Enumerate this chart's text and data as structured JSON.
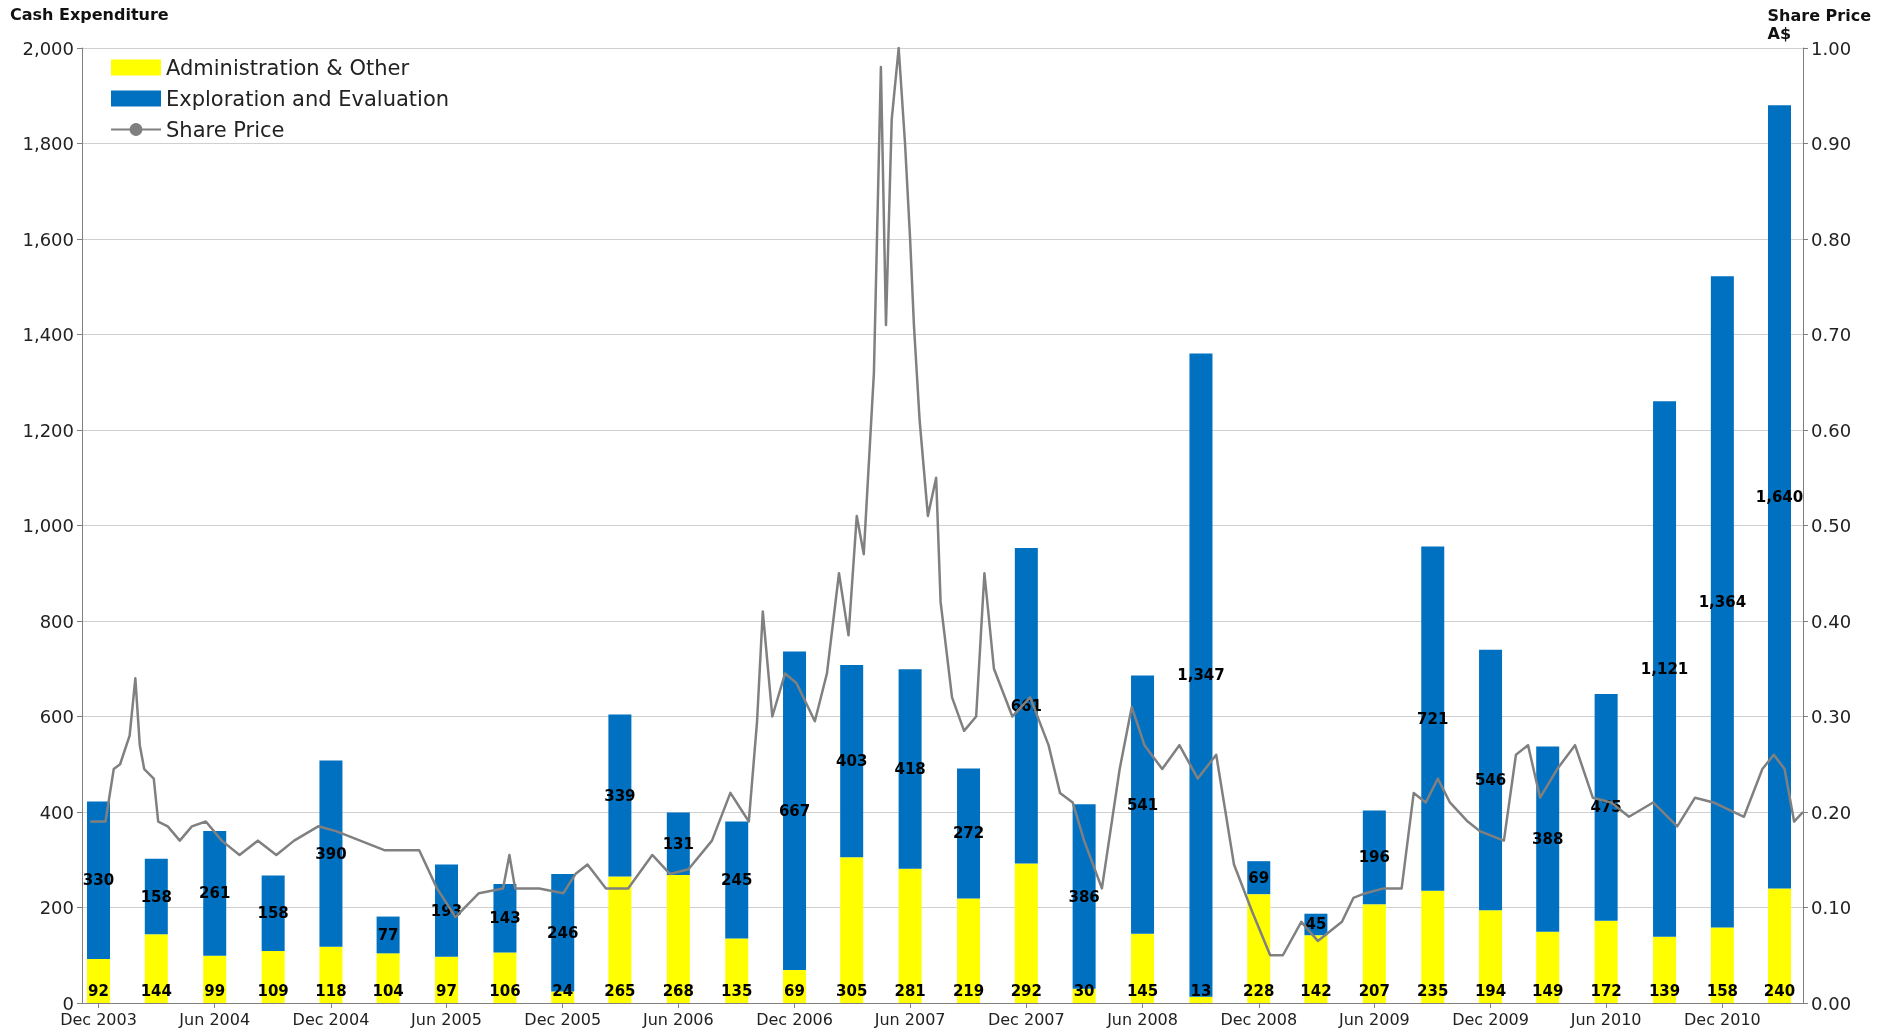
{
  "chart_data": {
    "type": "bar",
    "stacked": true,
    "ylabel": "Cash Expenditure",
    "y2label": "Share Price\nA$",
    "x": [
      "2003-12",
      "2004-03",
      "2004-06",
      "2004-09",
      "2004-12",
      "2005-03",
      "2005-06",
      "2005-09",
      "2005-12",
      "2006-03",
      "2006-06",
      "2006-09",
      "2006-12",
      "2007-03",
      "2007-06",
      "2007-09",
      "2007-12",
      "2008-03",
      "2008-06",
      "2008-09",
      "2008-12",
      "2009-03",
      "2009-06",
      "2009-09",
      "2009-12",
      "2010-03",
      "2010-06",
      "2010-09",
      "2010-12",
      "2011-03"
    ],
    "series": [
      {
        "name": "Administration & Other",
        "color": "#ffff00",
        "values": [
          92,
          144,
          99,
          109,
          118,
          104,
          97,
          106,
          24,
          265,
          268,
          135,
          69,
          305,
          281,
          219,
          292,
          30,
          145,
          13,
          228,
          142,
          207,
          235,
          194,
          149,
          172,
          139,
          158,
          240
        ],
        "value_labels": [
          "92",
          "144",
          "99",
          "109",
          "118",
          "104",
          "97",
          "106",
          "24",
          "265",
          "268",
          "135",
          "69",
          "305",
          "281",
          "219",
          "292",
          "30",
          "145",
          "13",
          "228",
          "142",
          "207",
          "235",
          "194",
          "149",
          "172",
          "139",
          "158",
          "240"
        ]
      },
      {
        "name": "Exploration and Evaluation",
        "color": "#0070c0",
        "values": [
          330,
          158,
          261,
          158,
          390,
          77,
          193,
          143,
          246,
          339,
          131,
          245,
          667,
          403,
          418,
          272,
          661,
          386,
          541,
          1347,
          69,
          45,
          196,
          721,
          546,
          388,
          475,
          1121,
          1364,
          1640
        ],
        "value_labels": [
          "330",
          "158",
          "261",
          "158",
          "390",
          "77",
          "193",
          "143",
          "246",
          "339",
          "131",
          "245",
          "667",
          "403",
          "418",
          "272",
          "661",
          "386",
          "541",
          "1,347",
          "69",
          "45",
          "196",
          "721",
          "546",
          "388",
          "475",
          "1,121",
          "1,364",
          "1,640"
        ]
      },
      {
        "name": "Share Price",
        "type": "line",
        "axis": "y2",
        "color": "#808080",
        "marker": "none",
        "line_style": "solid",
        "x": [
          "2003-11-18",
          "2003-12-12",
          "2003-12-25",
          "2004-01-04",
          "2004-01-19",
          "2004-01-28",
          "2004-02-04",
          "2004-02-11",
          "2004-02-26",
          "2004-03-04",
          "2004-03-19",
          "2004-04-07",
          "2004-04-26",
          "2004-05-18",
          "2004-06-12",
          "2004-07-10",
          "2004-08-08",
          "2004-09-06",
          "2004-10-04",
          "2004-11-11",
          "2004-12-09",
          "2005-01-16",
          "2005-02-23",
          "2005-04-19",
          "2005-05-17",
          "2005-06-15",
          "2005-07-22",
          "2005-08-29",
          "2005-09-08",
          "2005-09-17",
          "2005-10-25",
          "2005-12-02",
          "2005-12-21",
          "2006-01-09",
          "2006-02-07",
          "2006-03-14",
          "2006-04-21",
          "2006-05-19",
          "2006-06-17",
          "2006-07-24",
          "2006-08-22",
          "2006-09-20",
          "2006-10-03",
          "2006-10-12",
          "2006-10-27",
          "2006-11-16",
          "2006-12-04",
          "2007-01-02",
          "2007-01-21",
          "2007-02-09",
          "2007-02-24",
          "2007-03-09",
          "2007-03-20",
          "2007-04-05",
          "2007-04-16",
          "2007-04-24",
          "2007-05-03",
          "2007-05-14",
          "2007-05-24",
          "2007-06-01",
          "2007-06-07",
          "2007-06-16",
          "2007-06-29",
          "2007-07-12",
          "2007-07-19",
          "2007-08-06",
          "2007-08-25",
          "2007-09-13",
          "2007-09-26",
          "2007-10-11",
          "2007-11-09",
          "2007-12-07",
          "2008-01-05",
          "2008-01-23",
          "2008-02-12",
          "2008-03-01",
          "2008-03-29",
          "2008-04-26",
          "2008-05-15",
          "2008-06-04",
          "2008-07-02",
          "2008-07-29",
          "2008-08-27",
          "2008-09-25",
          "2008-10-23",
          "2008-11-21",
          "2008-12-19",
          "2009-01-08",
          "2009-02-06",
          "2009-03-04",
          "2009-04-11",
          "2009-04-29",
          "2009-05-18",
          "2009-06-16",
          "2009-07-14",
          "2009-08-02",
          "2009-08-21",
          "2009-09-09",
          "2009-09-28",
          "2009-10-26",
          "2009-11-14",
          "2009-12-22",
          "2010-01-10",
          "2010-01-29",
          "2010-02-17",
          "2010-03-16",
          "2010-04-13",
          "2010-05-11",
          "2010-06-09",
          "2010-07-07",
          "2010-08-14",
          "2010-09-21",
          "2010-10-19",
          "2010-11-17",
          "2011-01-04",
          "2011-02-02",
          "2011-02-20",
          "2011-03-09",
          "2011-03-24",
          "2011-04-07"
        ],
        "values": [
          0.19,
          0.19,
          0.245,
          0.25,
          0.28,
          0.34,
          0.27,
          0.245,
          0.235,
          0.19,
          0.185,
          0.17,
          0.185,
          0.19,
          0.17,
          0.155,
          0.17,
          0.155,
          0.17,
          0.185,
          0.18,
          0.17,
          0.16,
          0.16,
          0.12,
          0.09,
          0.115,
          0.12,
          0.155,
          0.12,
          0.12,
          0.115,
          0.135,
          0.145,
          0.12,
          0.12,
          0.155,
          0.135,
          0.14,
          0.17,
          0.22,
          0.19,
          0.295,
          0.41,
          0.3,
          0.345,
          0.335,
          0.295,
          0.345,
          0.45,
          0.385,
          0.51,
          0.47,
          0.66,
          0.98,
          0.71,
          0.925,
          1.0,
          0.9,
          0.8,
          0.71,
          0.61,
          0.51,
          0.55,
          0.42,
          0.32,
          0.285,
          0.3,
          0.45,
          0.35,
          0.3,
          0.32,
          0.27,
          0.22,
          0.21,
          0.17,
          0.12,
          0.245,
          0.31,
          0.27,
          0.245,
          0.27,
          0.235,
          0.26,
          0.145,
          0.095,
          0.05,
          0.05,
          0.085,
          0.065,
          0.085,
          0.11,
          0.115,
          0.12,
          0.12,
          0.22,
          0.21,
          0.235,
          0.21,
          0.19,
          0.18,
          0.17,
          0.26,
          0.27,
          0.215,
          0.245,
          0.27,
          0.215,
          0.21,
          0.195,
          0.21,
          0.185,
          0.215,
          0.21,
          0.195,
          0.245,
          0.26,
          0.245,
          0.19,
          0.2
        ]
      }
    ],
    "xlim": [
      "2003-11-05",
      "2011-04-07"
    ],
    "xticks": [
      {
        "value": "2003-12",
        "label": "Dec 2003"
      },
      {
        "value": "2004-06",
        "label": "Jun 2004"
      },
      {
        "value": "2004-12",
        "label": "Dec 2004"
      },
      {
        "value": "2005-06",
        "label": "Jun 2005"
      },
      {
        "value": "2005-12",
        "label": "Dec 2005"
      },
      {
        "value": "2006-06",
        "label": "Jun 2006"
      },
      {
        "value": "2006-12",
        "label": "Dec 2006"
      },
      {
        "value": "2007-06",
        "label": "Jun 2007"
      },
      {
        "value": "2007-12",
        "label": "Dec 2007"
      },
      {
        "value": "2008-06",
        "label": "Jun 2008"
      },
      {
        "value": "2008-12",
        "label": "Dec 2008"
      },
      {
        "value": "2009-06",
        "label": "Jun 2009"
      },
      {
        "value": "2009-12",
        "label": "Dec 2009"
      },
      {
        "value": "2010-06",
        "label": "Jun 2010"
      },
      {
        "value": "2010-12",
        "label": "Dec 2010"
      }
    ],
    "ylim": [
      0,
      2000
    ],
    "yticks": [
      0,
      200,
      400,
      600,
      800,
      {
        "value": 1000,
        "label": "1,000"
      },
      {
        "value": 1200,
        "label": "1,200"
      },
      {
        "value": 1400,
        "label": "1,400"
      },
      {
        "value": 1600,
        "label": "1,600"
      },
      {
        "value": 1800,
        "label": "1,800"
      },
      {
        "value": 2000,
        "label": "2,000"
      }
    ],
    "y2lim": [
      0,
      1
    ],
    "y2ticks": [
      {
        "value": 0,
        "label": "0.00"
      },
      {
        "value": 0.1,
        "label": "0.10"
      },
      {
        "value": 0.2,
        "label": "0.20"
      },
      {
        "value": 0.3,
        "label": "0.30"
      },
      {
        "value": 0.4,
        "label": "0.40"
      },
      {
        "value": 0.5,
        "label": "0.50"
      },
      {
        "value": 0.6,
        "label": "0.60"
      },
      {
        "value": 0.7,
        "label": "0.70"
      },
      {
        "value": 0.8,
        "label": "0.80"
      },
      {
        "value": 0.9,
        "label": "0.90"
      },
      {
        "value": 1,
        "label": "1.00"
      }
    ],
    "grid": "y",
    "legend": "top left"
  }
}
